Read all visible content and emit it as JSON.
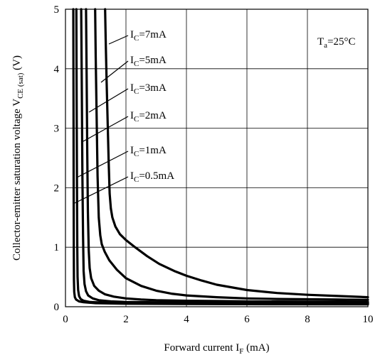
{
  "chart_data": {
    "type": "line",
    "title": "",
    "xlabel": {
      "main": "Forward current I",
      "sub": "F",
      "unit": " (mA)"
    },
    "ylabel": {
      "main": "Collector-emitter saturation voltage V",
      "sub": "CE (sat)",
      "unit": " (V)"
    },
    "xlim": [
      0,
      10
    ],
    "ylim": [
      0,
      5
    ],
    "xticks": [
      0,
      2,
      4,
      6,
      8,
      10
    ],
    "yticks": [
      0,
      1,
      2,
      3,
      4,
      5
    ],
    "grid": true,
    "condition": {
      "main": "T",
      "sub": "a",
      "value": "=25°C"
    },
    "series": [
      {
        "name": "IC=7mA",
        "label_main": "I",
        "label_sub": "C",
        "label_value": "=7mA",
        "x": [
          1.31,
          1.33,
          1.36,
          1.4,
          1.43,
          1.46,
          1.5,
          1.55,
          1.65,
          1.8,
          2.0,
          2.3,
          2.7,
          3.1,
          3.6,
          4.0,
          4.5,
          5.0,
          6.0,
          7.0,
          8.0,
          9.0,
          10.0
        ],
        "y": [
          5.0,
          4.5,
          3.8,
          3.0,
          2.4,
          1.9,
          1.65,
          1.5,
          1.35,
          1.22,
          1.12,
          1.0,
          0.85,
          0.72,
          0.6,
          0.52,
          0.44,
          0.37,
          0.28,
          0.23,
          0.2,
          0.18,
          0.16
        ]
      },
      {
        "name": "IC=5mA",
        "label_main": "I",
        "label_sub": "C",
        "label_value": "=5mA",
        "x": [
          0.98,
          1.0,
          1.03,
          1.06,
          1.1,
          1.15,
          1.2,
          1.3,
          1.45,
          1.7,
          2.0,
          2.5,
          3.0,
          3.5,
          4.0,
          5.0,
          6.0,
          7.0,
          8.0,
          9.0,
          10.0
        ],
        "y": [
          5.0,
          4.2,
          3.2,
          2.2,
          1.5,
          1.2,
          1.05,
          0.92,
          0.78,
          0.62,
          0.48,
          0.35,
          0.27,
          0.22,
          0.19,
          0.16,
          0.14,
          0.13,
          0.125,
          0.12,
          0.115
        ]
      },
      {
        "name": "IC=3mA",
        "label_main": "I",
        "label_sub": "C",
        "label_value": "=3mA",
        "x": [
          0.68,
          0.7,
          0.72,
          0.74,
          0.77,
          0.8,
          0.85,
          0.95,
          1.1,
          1.3,
          1.6,
          2.0,
          2.5,
          3.0,
          4.0,
          5.0,
          6.0,
          8.0,
          10.0
        ],
        "y": [
          5.0,
          3.8,
          2.6,
          1.6,
          0.95,
          0.65,
          0.48,
          0.35,
          0.27,
          0.21,
          0.17,
          0.14,
          0.12,
          0.11,
          0.1,
          0.095,
          0.09,
          0.085,
          0.08
        ]
      },
      {
        "name": "IC=2mA",
        "label_main": "I",
        "label_sub": "C",
        "label_value": "=2mA",
        "x": [
          0.52,
          0.54,
          0.56,
          0.58,
          0.6,
          0.63,
          0.68,
          0.75,
          0.9,
          1.1,
          1.5,
          2.0,
          3.0,
          4.0,
          6.0,
          8.0,
          10.0
        ],
        "y": [
          5.0,
          3.6,
          2.2,
          1.2,
          0.6,
          0.38,
          0.26,
          0.19,
          0.14,
          0.11,
          0.09,
          0.08,
          0.075,
          0.07,
          0.065,
          0.062,
          0.06
        ]
      },
      {
        "name": "IC=1mA",
        "label_main": "I",
        "label_sub": "C",
        "label_value": "=1mA",
        "x": [
          0.36,
          0.37,
          0.38,
          0.39,
          0.4,
          0.42,
          0.45,
          0.5,
          0.6,
          0.8,
          1.2,
          2.0,
          3.0,
          5.0,
          7.0,
          10.0
        ],
        "y": [
          5.0,
          3.5,
          2.0,
          1.0,
          0.5,
          0.28,
          0.18,
          0.13,
          0.1,
          0.08,
          0.07,
          0.065,
          0.06,
          0.055,
          0.052,
          0.05
        ]
      },
      {
        "name": "IC=0.5mA",
        "label_main": "I",
        "label_sub": "C",
        "label_value": "=0.5mA",
        "x": [
          0.26,
          0.265,
          0.27,
          0.275,
          0.28,
          0.29,
          0.31,
          0.35,
          0.45,
          0.6,
          1.0,
          2.0,
          4.0,
          7.0,
          10.0
        ],
        "y": [
          5.0,
          3.5,
          2.0,
          1.0,
          0.45,
          0.25,
          0.16,
          0.12,
          0.09,
          0.075,
          0.06,
          0.05,
          0.045,
          0.042,
          0.04
        ]
      }
    ]
  }
}
